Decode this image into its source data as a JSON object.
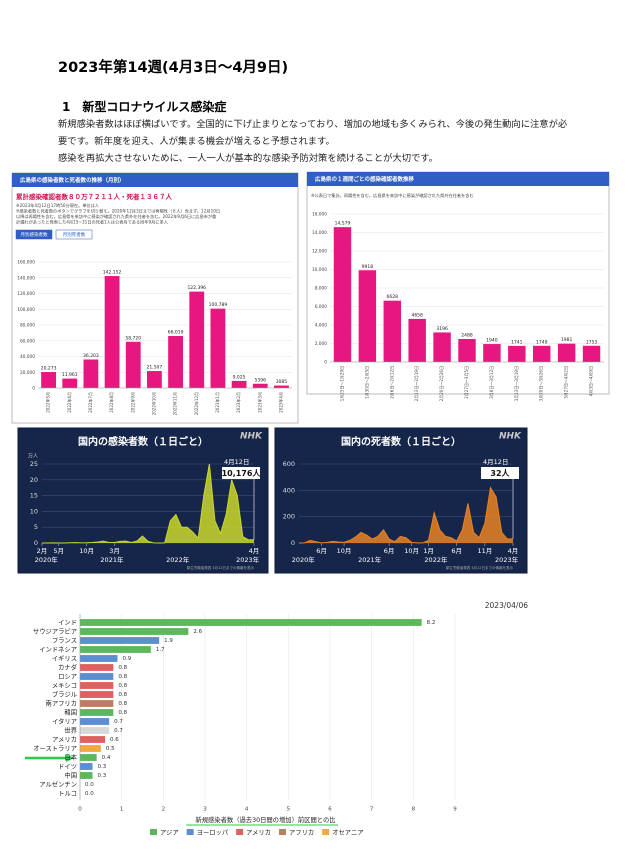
{
  "title": "2023年第14週(4月3日～4月9日)",
  "section": "1　新型コロナウイルス感染症",
  "paragraphs": [
    "新規感染者数はほぼ横ばいです。全国的に下げ止まりとなっており、増加の地域も多くみられ、今後の発生動向に注意が必要です。新年度を迎え、人が集まる機会が増えると予想されます。",
    "感染を再拡大させないために、一人一人が基本的な感染予防対策を続けることが大切です。"
  ],
  "chart_data": [
    {
      "type": "bar",
      "title": "広島県の感染者数と死者数の推移（月別）",
      "subtitle": "累計感染確認者数８０万７２１１人・死者１３６７人",
      "notes": [
        "※2023年4月12日17時50分現在。単位は人",
        "※感染者数と死者数のボタンでグラフを切り替え。2020年12月3日までは再陽性（８人）含まず。12月10日",
        "以降は再陽性を含む。広島県を来訪中に感染が確認された県外在住者を含む。2022年9月6日に広島市が重",
        "計漏れがあったと発表した4月15~31日の死者1人は公表月である同年9月に参入"
      ],
      "tabs": [
        "月別感染者数",
        "月別死者数"
      ],
      "categories": [
        "2022年5月",
        "2022年6月",
        "2022年7月",
        "2022年8月",
        "2022年9月",
        "2022年10月",
        "2022年11月",
        "2022年12月",
        "2023年1月",
        "2023年2月",
        "2023年3月",
        "2023年4月"
      ],
      "values": [
        20273,
        11961,
        36203,
        142152,
        58720,
        21507,
        66019,
        122396,
        100789,
        9025,
        5396,
        3085
      ],
      "value_labels": [
        "20,273",
        "11,961",
        "36,203",
        "142,152",
        "58,720",
        "21,507",
        "66,019",
        "122,396",
        "100,789",
        "9,025",
        "5396",
        "3085"
      ],
      "color": "#e8177f",
      "ylim": [
        0,
        160000
      ],
      "yticks": [
        0,
        {
          "value": 20000,
          "label": "20,000"
        },
        {
          "value": 40000,
          "label": "40,000"
        },
        {
          "value": 60000,
          "label": "60,000"
        },
        {
          "value": 80000,
          "label": "80,000"
        },
        {
          "value": 100000,
          "label": "100,000"
        },
        {
          "value": 120000,
          "label": "120,000"
        },
        {
          "value": 140000,
          "label": "140,000"
        },
        {
          "value": 160000,
          "label": "160,000"
        }
      ],
      "grid": true
    },
    {
      "type": "bar",
      "title": "広島県の１週間ごとの感染確認者数推移",
      "notes": [
        "※公表日で集計。再陽性を含む。広島県を来訪中に感染が確認された県外在住者を含む"
      ],
      "categories": [
        "1月23日～1月29日",
        "1月30日～2月5日",
        "2月6日～2月12日",
        "2月13日～2月19日",
        "2月20日～2月26日",
        "2月27日～3月5日",
        "3月6日～3月12日",
        "3月13日～3月19日",
        "3月20日～3月26日",
        "3月27日～4月2日",
        "4月3日～4月9日"
      ],
      "values": [
        14579,
        9918,
        6628,
        4658,
        3196,
        2488,
        1940,
        1741,
        1749,
        1981,
        1753
      ],
      "value_labels": [
        "14,579",
        "9918",
        "6628",
        "4658",
        "3196",
        "2488",
        "1940",
        "1741",
        "1749",
        "1981",
        "1753"
      ],
      "color": "#e8177f",
      "ylim": [
        0,
        16000
      ],
      "yticks": [
        0,
        {
          "value": 2000,
          "label": "2,000"
        },
        {
          "value": 4000,
          "label": "4,000"
        },
        {
          "value": 6000,
          "label": "6,000"
        },
        {
          "value": 8000,
          "label": "8,000"
        },
        {
          "value": 10000,
          "label": "10,000"
        },
        {
          "value": 12000,
          "label": "12,000"
        },
        {
          "value": 14000,
          "label": "14,000"
        },
        {
          "value": 16000,
          "label": "16,000"
        }
      ],
      "grid": true
    },
    {
      "type": "area",
      "title": "国内の感染者数（１日ごと）",
      "logo": "NHK",
      "unit": "万人",
      "categories": [
        "2月",
        null,
        null,
        "5月",
        null,
        null,
        null,
        null,
        "10月",
        null,
        null,
        null,
        null,
        "3月",
        null,
        null,
        null,
        null,
        null,
        null,
        null,
        null,
        null,
        null,
        null,
        null,
        null,
        null,
        null,
        null,
        null,
        null,
        null,
        null,
        null,
        null,
        null,
        null,
        "4月"
      ],
      "values": [
        0,
        0.01,
        0.05,
        0.01,
        0.01,
        0.06,
        0.1,
        0.05,
        0.06,
        0.15,
        0.3,
        0.6,
        0.15,
        0.15,
        0.5,
        0.6,
        0.15,
        0.6,
        2.2,
        0.5,
        0.05,
        0.01,
        0.03,
        7,
        9,
        5,
        5,
        3.5,
        1.5,
        15,
        25,
        7,
        3,
        9,
        20,
        15,
        2,
        1,
        1.0176
      ],
      "years": [
        "2020年",
        "2021年",
        "2022年",
        "2023年"
      ],
      "annotation": {
        "date": "4月12日",
        "value": 1.0176,
        "value_label": "10,176人"
      },
      "source": "厚生労働省発表 4月12日までの情報を表示",
      "color": "#cbd82a",
      "ylim": [
        0,
        25
      ],
      "yticks": [
        0,
        5,
        10,
        15,
        20,
        25
      ]
    },
    {
      "type": "area",
      "title": "国内の死者数（１日ごと）",
      "logo": "NHK",
      "categories": [
        null,
        null,
        null,
        null,
        "6月",
        null,
        null,
        null,
        "10月",
        null,
        null,
        null,
        null,
        null,
        null,
        null,
        "6月",
        null,
        null,
        null,
        "10月",
        null,
        null,
        "1月",
        null,
        null,
        null,
        null,
        "6月",
        null,
        null,
        null,
        null,
        "11月",
        null,
        null,
        null,
        null,
        "4月"
      ],
      "values": [
        0,
        1,
        20,
        10,
        1,
        5,
        12,
        8,
        5,
        20,
        45,
        80,
        60,
        30,
        50,
        100,
        30,
        10,
        50,
        40,
        5,
        1,
        1,
        20,
        230,
        100,
        50,
        40,
        15,
        100,
        300,
        80,
        40,
        150,
        420,
        350,
        80,
        30,
        32
      ],
      "years": [
        "2020年",
        "2021年",
        "2022年",
        "2023年"
      ],
      "annotation": {
        "date": "4月12日",
        "value": 32,
        "value_label": "32人"
      },
      "source": "厚生労働省発表 4月12日までの情報を表示",
      "color": "#ea8222",
      "ylim": [
        0,
        600
      ],
      "yticks": [
        0,
        200,
        400,
        600
      ]
    },
    {
      "type": "hbar",
      "date": "2023/04/06",
      "xlabel": "新規感染者数（過去30日間の増加）前区間との比",
      "categories": [
        "インド",
        "サウジアラビア",
        "フランス",
        "インドネシア",
        "イギリス",
        "カナダ",
        "ロシア",
        "メキシコ",
        "ブラジル",
        "南アフリカ",
        "韓国",
        "イタリア",
        "世界",
        "アメリカ",
        "オーストラリア",
        "日本",
        "ドイツ",
        "中国",
        "アルゼンチン",
        "トルコ"
      ],
      "values": [
        8.2,
        2.6,
        1.9,
        1.7,
        0.9,
        0.8,
        0.8,
        0.8,
        0.8,
        0.8,
        0.8,
        0.7,
        0.7,
        0.6,
        0.5,
        0.4,
        0.3,
        0.3,
        0,
        0
      ],
      "value_labels": [
        "8.2",
        "2.6",
        "1.9",
        "1.7",
        "0.9",
        "0.8",
        "0.8",
        "0.8",
        "0.8",
        "0.8",
        "0.8",
        "0.7",
        "0.7",
        "0.6",
        "0.5",
        "0.4",
        "0.3",
        "0.3",
        "0.0",
        "0.0"
      ],
      "colors": [
        "#5cb85c",
        "#5cb85c",
        "#5b8fd1",
        "#5cb85c",
        "#5b8fd1",
        "#e06060",
        "#5b8fd1",
        "#e06060",
        "#e06060",
        "#b88060",
        "#5cb85c",
        "#5b8fd1",
        "#d8d8d8",
        "#e06060",
        "#f0a840",
        "#5cb85c",
        "#5b8fd1",
        "#5cb85c",
        "#e06060",
        "#5b8fd1"
      ],
      "legend": [
        {
          "name": "アジア",
          "color": "#5cb85c"
        },
        {
          "name": "ヨーロッパ",
          "color": "#5b8fd1"
        },
        {
          "name": "アメリカ",
          "color": "#e06060"
        },
        {
          "name": "アフリカ",
          "color": "#b88060"
        },
        {
          "name": "オセアニア",
          "color": "#f0a840"
        }
      ],
      "xlim": [
        0,
        9
      ],
      "xticks": [
        0,
        1,
        2,
        3,
        4,
        5,
        6,
        7,
        8,
        9
      ],
      "grid": true
    }
  ]
}
